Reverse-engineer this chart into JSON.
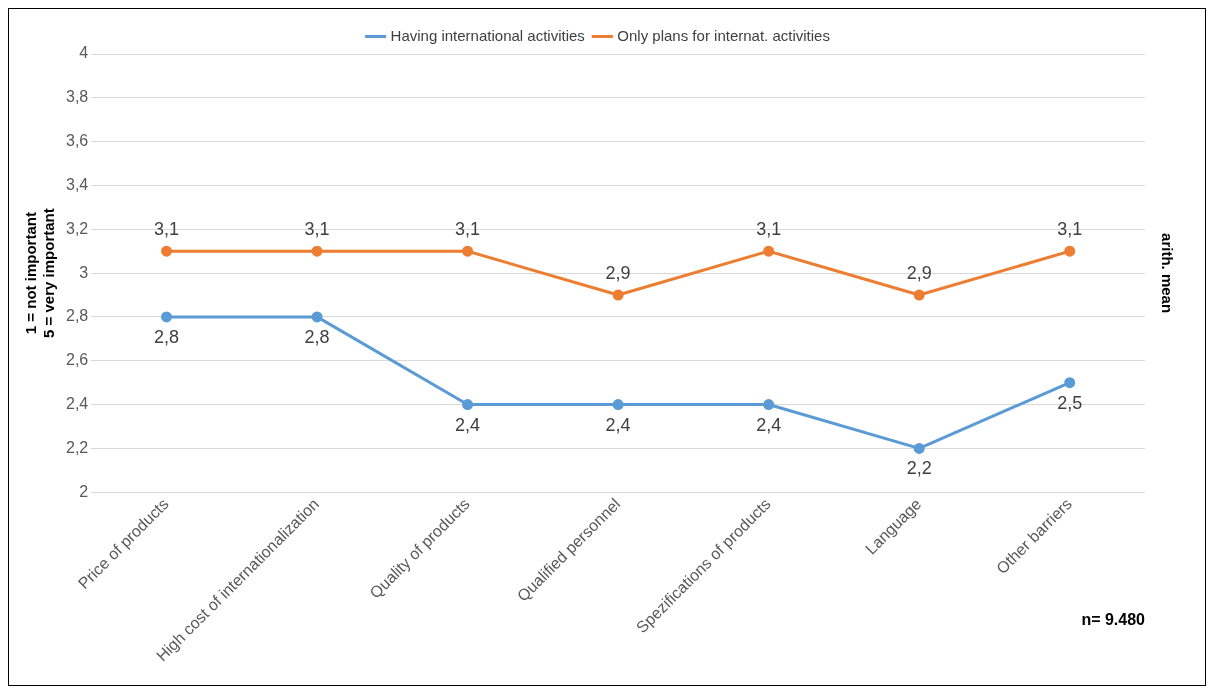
{
  "chart_data": {
    "type": "line",
    "categories": [
      "Price of products",
      "High cost of internationalization",
      "Quality of products",
      "Qualified personnel",
      "Spezifications of products",
      "Language",
      "Other barriers"
    ],
    "series": [
      {
        "name": "Having international activities",
        "color": "#5b9bd5",
        "values": [
          2.8,
          2.8,
          2.4,
          2.4,
          2.4,
          2.2,
          2.5
        ],
        "value_labels": [
          "2,8",
          "2,8",
          "2,4",
          "2,4",
          "2,4",
          "2,2",
          "2,5"
        ]
      },
      {
        "name": "Only plans for internat. activities",
        "color": "#ed7d31",
        "values": [
          3.1,
          3.1,
          3.1,
          2.9,
          3.1,
          2.9,
          3.1
        ],
        "value_labels": [
          "3,1",
          "3,1",
          "3,1",
          "2,9",
          "3,1",
          "2,9",
          "3,1"
        ]
      }
    ],
    "ylim": [
      2,
      4
    ],
    "yticks": [
      2,
      {
        "value": 2.2,
        "label": "2,2"
      },
      {
        "value": 2.4,
        "label": "2,4"
      },
      {
        "value": 2.6,
        "label": "2,6"
      },
      {
        "value": 2.8,
        "label": "2,8"
      },
      3,
      {
        "value": 3.2,
        "label": "3,2"
      },
      {
        "value": 3.4,
        "label": "3,4"
      },
      {
        "value": 3.6,
        "label": "3,6"
      },
      {
        "value": 3.8,
        "label": "3,8"
      },
      4
    ],
    "ylabel": "1 = not important\n5 = very important",
    "y2label": "arith. mean",
    "annotations": [
      "n= 9.480"
    ],
    "grid": "y",
    "legend": "top",
    "marker": "circle",
    "line_style": "solid"
  }
}
